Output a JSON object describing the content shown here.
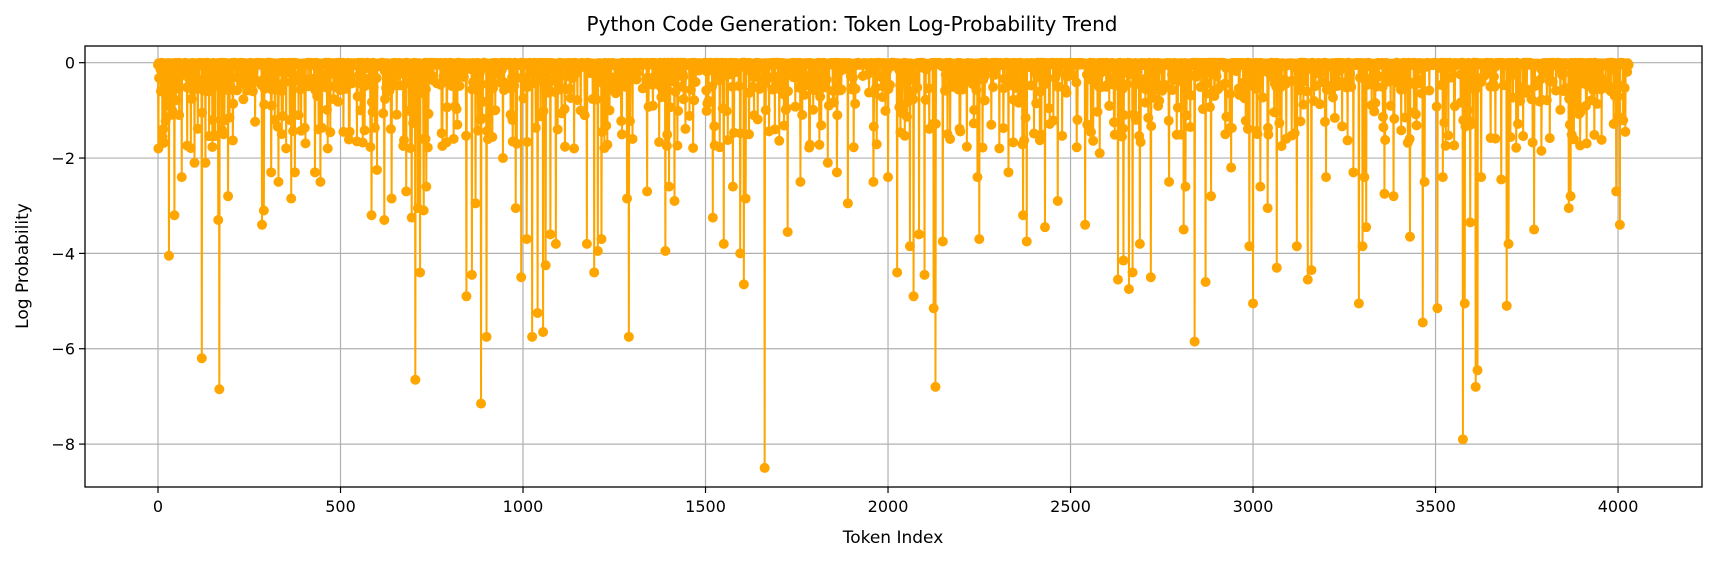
{
  "chart_data": {
    "type": "line",
    "title": "Python Code Generation: Token Log-Probability Trend",
    "xlabel": "Token Index",
    "ylabel": "Log Probability",
    "xlim": [
      -200,
      4230
    ],
    "ylim": [
      -8.9,
      0.35
    ],
    "x_ticks": [
      0,
      500,
      1000,
      1500,
      2000,
      2500,
      3000,
      3500,
      4000
    ],
    "y_ticks": [
      0,
      -2,
      -4,
      -6,
      -8
    ],
    "grid": true,
    "color": "#FFA500",
    "marker": "circle",
    "n_tokens": 4030,
    "baseline_value": -0.05,
    "series": [
      {
        "dips": [
          [
            1,
            -1.8
          ],
          [
            8,
            -0.6
          ],
          [
            25,
            -0.9
          ],
          [
            30,
            -4.05
          ],
          [
            45,
            -3.2
          ],
          [
            58,
            -1.1
          ],
          [
            65,
            -2.4
          ],
          [
            100,
            -2.1
          ],
          [
            120,
            -6.2
          ],
          [
            130,
            -2.1
          ],
          [
            150,
            -1.2
          ],
          [
            165,
            -3.3
          ],
          [
            168,
            -6.85
          ],
          [
            180,
            -1.5
          ],
          [
            192,
            -2.8
          ],
          [
            230,
            -0.4
          ],
          [
            260,
            -0.6
          ],
          [
            285,
            -3.4
          ],
          [
            290,
            -3.1
          ],
          [
            310,
            -2.3
          ],
          [
            320,
            -1.2
          ],
          [
            330,
            -2.5
          ],
          [
            365,
            -2.85
          ],
          [
            375,
            -2.3
          ],
          [
            385,
            -1.1
          ],
          [
            430,
            -2.3
          ],
          [
            445,
            -2.5
          ],
          [
            465,
            -1.8
          ],
          [
            525,
            -1.45
          ],
          [
            545,
            -1.65
          ],
          [
            555,
            -1.0
          ],
          [
            585,
            -3.2
          ],
          [
            600,
            -2.25
          ],
          [
            620,
            -3.3
          ],
          [
            640,
            -2.85
          ],
          [
            680,
            -2.7
          ],
          [
            695,
            -3.25
          ],
          [
            705,
            -6.65
          ],
          [
            712,
            -3.05
          ],
          [
            718,
            -4.4
          ],
          [
            728,
            -3.1
          ],
          [
            735,
            -2.6
          ],
          [
            820,
            -1.3
          ],
          [
            845,
            -4.9
          ],
          [
            860,
            -4.45
          ],
          [
            870,
            -2.95
          ],
          [
            885,
            -7.15
          ],
          [
            900,
            -5.75
          ],
          [
            945,
            -2.0
          ],
          [
            980,
            -3.05
          ],
          [
            995,
            -4.5
          ],
          [
            1010,
            -3.7
          ],
          [
            1025,
            -5.75
          ],
          [
            1040,
            -5.25
          ],
          [
            1055,
            -5.65
          ],
          [
            1062,
            -4.25
          ],
          [
            1075,
            -3.6
          ],
          [
            1090,
            -3.8
          ],
          [
            1140,
            -1.8
          ],
          [
            1175,
            -3.8
          ],
          [
            1195,
            -4.4
          ],
          [
            1205,
            -3.95
          ],
          [
            1215,
            -3.7
          ],
          [
            1285,
            -2.85
          ],
          [
            1290,
            -5.75
          ],
          [
            1300,
            -1.6
          ],
          [
            1340,
            -2.7
          ],
          [
            1390,
            -3.95
          ],
          [
            1400,
            -2.6
          ],
          [
            1415,
            -2.9
          ],
          [
            1520,
            -3.25
          ],
          [
            1550,
            -3.8
          ],
          [
            1575,
            -2.6
          ],
          [
            1595,
            -4.0
          ],
          [
            1605,
            -4.65
          ],
          [
            1610,
            -2.85
          ],
          [
            1662,
            -8.5
          ],
          [
            1690,
            -1.4
          ],
          [
            1725,
            -3.55
          ],
          [
            1760,
            -2.5
          ],
          [
            1835,
            -2.1
          ],
          [
            1860,
            -2.3
          ],
          [
            1890,
            -2.95
          ],
          [
            1960,
            -2.5
          ],
          [
            2000,
            -2.4
          ],
          [
            2025,
            -4.4
          ],
          [
            2060,
            -3.85
          ],
          [
            2070,
            -4.9
          ],
          [
            2085,
            -3.6
          ],
          [
            2100,
            -4.45
          ],
          [
            2125,
            -5.15
          ],
          [
            2130,
            -6.8
          ],
          [
            2150,
            -3.75
          ],
          [
            2170,
            -1.6
          ],
          [
            2245,
            -2.4
          ],
          [
            2250,
            -3.7
          ],
          [
            2330,
            -2.3
          ],
          [
            2370,
            -3.2
          ],
          [
            2380,
            -3.75
          ],
          [
            2430,
            -3.45
          ],
          [
            2465,
            -2.9
          ],
          [
            2540,
            -3.4
          ],
          [
            2580,
            -1.9
          ],
          [
            2630,
            -4.55
          ],
          [
            2645,
            -4.15
          ],
          [
            2660,
            -4.75
          ],
          [
            2670,
            -4.4
          ],
          [
            2690,
            -3.8
          ],
          [
            2720,
            -4.5
          ],
          [
            2770,
            -2.5
          ],
          [
            2810,
            -3.5
          ],
          [
            2815,
            -2.6
          ],
          [
            2840,
            -5.85
          ],
          [
            2870,
            -4.6
          ],
          [
            2885,
            -2.8
          ],
          [
            2940,
            -2.2
          ],
          [
            2990,
            -3.85
          ],
          [
            3000,
            -5.05
          ],
          [
            3020,
            -2.6
          ],
          [
            3040,
            -3.05
          ],
          [
            3065,
            -4.3
          ],
          [
            3120,
            -3.85
          ],
          [
            3150,
            -4.55
          ],
          [
            3160,
            -4.35
          ],
          [
            3200,
            -2.4
          ],
          [
            3275,
            -2.3
          ],
          [
            3290,
            -5.05
          ],
          [
            3300,
            -3.85
          ],
          [
            3305,
            -2.4
          ],
          [
            3310,
            -3.45
          ],
          [
            3360,
            -2.75
          ],
          [
            3385,
            -2.8
          ],
          [
            3430,
            -3.65
          ],
          [
            3465,
            -5.45
          ],
          [
            3470,
            -2.5
          ],
          [
            3505,
            -5.15
          ],
          [
            3520,
            -2.4
          ],
          [
            3575,
            -7.9
          ],
          [
            3580,
            -5.05
          ],
          [
            3595,
            -3.35
          ],
          [
            3610,
            -6.8
          ],
          [
            3615,
            -6.45
          ],
          [
            3625,
            -2.4
          ],
          [
            3680,
            -2.45
          ],
          [
            3695,
            -5.1
          ],
          [
            3700,
            -3.8
          ],
          [
            3770,
            -3.5
          ],
          [
            3790,
            -1.85
          ],
          [
            3865,
            -3.05
          ],
          [
            3870,
            -2.8
          ],
          [
            3995,
            -2.7
          ],
          [
            4005,
            -3.4
          ],
          [
            4020,
            -1.45
          ]
        ]
      }
    ]
  }
}
